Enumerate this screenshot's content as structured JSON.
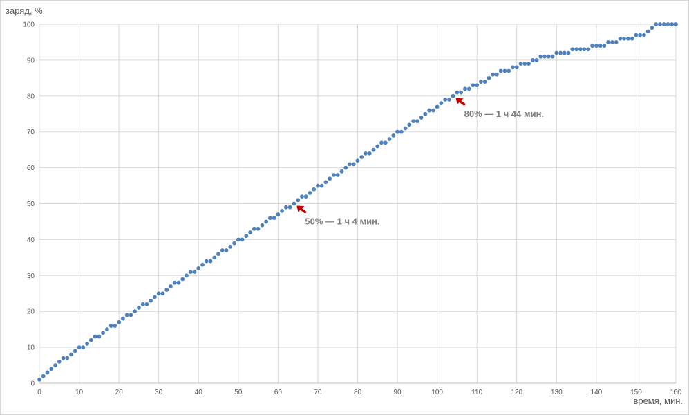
{
  "chart_data": {
    "type": "scatter",
    "title": "",
    "xlabel": "время, мин.",
    "ylabel": "заряд, %",
    "xlim": [
      0,
      160
    ],
    "ylim": [
      0,
      100
    ],
    "xticks": [
      0,
      10,
      20,
      30,
      40,
      50,
      60,
      70,
      80,
      90,
      100,
      110,
      120,
      130,
      140,
      150,
      160
    ],
    "yticks": [
      0,
      10,
      20,
      30,
      40,
      50,
      60,
      70,
      80,
      90,
      100
    ],
    "grid": true,
    "marker_color": "#4f81bd",
    "series": [
      {
        "x": [
          0,
          1,
          2,
          3,
          4,
          5,
          6,
          7,
          8,
          9,
          10,
          11,
          12,
          13,
          14,
          15,
          16,
          17,
          18,
          19,
          20,
          21,
          22,
          23,
          24,
          25,
          26,
          27,
          28,
          29,
          30,
          31,
          32,
          33,
          34,
          35,
          36,
          37,
          38,
          39,
          40,
          41,
          42,
          43,
          44,
          45,
          46,
          47,
          48,
          49,
          50,
          51,
          52,
          53,
          54,
          55,
          56,
          57,
          58,
          59,
          60,
          61,
          62,
          63,
          64,
          65,
          66,
          67,
          68,
          69,
          70,
          71,
          72,
          73,
          74,
          75,
          76,
          77,
          78,
          79,
          80,
          81,
          82,
          83,
          84,
          85,
          86,
          87,
          88,
          89,
          90,
          91,
          92,
          93,
          94,
          95,
          96,
          97,
          98,
          99,
          100,
          101,
          102,
          103,
          104,
          105,
          106,
          107,
          108,
          109,
          110,
          111,
          112,
          113,
          114,
          115,
          116,
          117,
          118,
          119,
          120,
          121,
          122,
          123,
          124,
          125,
          126,
          127,
          128,
          129,
          130,
          131,
          132,
          133,
          134,
          135,
          136,
          137,
          138,
          139,
          140,
          141,
          142,
          143,
          144,
          145,
          146,
          147,
          148,
          149,
          150,
          151,
          152,
          153,
          154,
          155,
          156,
          157,
          158,
          159,
          160
        ],
        "y": [
          1,
          2,
          3,
          4,
          5,
          6,
          7,
          7,
          8,
          9,
          10,
          10,
          11,
          12,
          13,
          13,
          14,
          15,
          16,
          16,
          17,
          18,
          19,
          19,
          20,
          21,
          22,
          22,
          23,
          24,
          25,
          25,
          26,
          27,
          28,
          28,
          29,
          30,
          31,
          31,
          32,
          33,
          34,
          34,
          35,
          36,
          37,
          37,
          38,
          39,
          40,
          40,
          41,
          42,
          43,
          43,
          44,
          45,
          46,
          46,
          47,
          48,
          49,
          49,
          50,
          51,
          52,
          52,
          53,
          54,
          55,
          55,
          56,
          57,
          58,
          58,
          59,
          60,
          61,
          61,
          62,
          63,
          64,
          64,
          65,
          66,
          67,
          67,
          68,
          69,
          70,
          70,
          71,
          72,
          73,
          73,
          74,
          75,
          76,
          76,
          77,
          78,
          79,
          79,
          80,
          81,
          81,
          82,
          82,
          83,
          83,
          84,
          84,
          85,
          86,
          86,
          87,
          87,
          87,
          88,
          88,
          89,
          89,
          89,
          90,
          90,
          91,
          91,
          91,
          91,
          92,
          92,
          92,
          92,
          93,
          93,
          93,
          93,
          93,
          94,
          94,
          94,
          94,
          95,
          95,
          95,
          96,
          96,
          96,
          96,
          97,
          97,
          97,
          98,
          99,
          100,
          100,
          100,
          100,
          100,
          100
        ]
      }
    ],
    "annotations": [
      {
        "text": "50% — 1 ч 4 мин.",
        "x": 64,
        "y": 50,
        "arrow_color": "#c00000"
      },
      {
        "text": "80% — 1 ч 44 мин.",
        "x": 104,
        "y": 80,
        "arrow_color": "#c00000"
      }
    ]
  }
}
